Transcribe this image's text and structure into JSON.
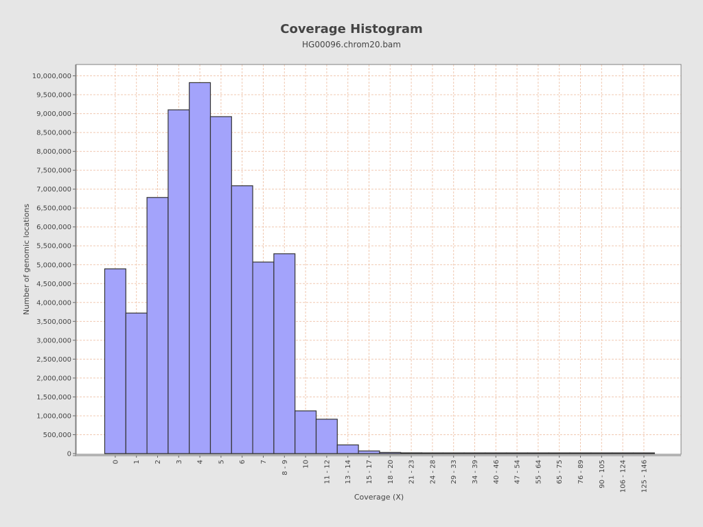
{
  "chart_data": {
    "type": "bar",
    "title": "Coverage Histogram",
    "subtitle": "HG00096.chrom20.bam",
    "xlabel": "Coverage (X)",
    "ylabel": "Number of genomic locations",
    "ylim": [
      0,
      10300000
    ],
    "yticks": [
      "0",
      "500,000",
      "1,000,000",
      "1,500,000",
      "2,000,000",
      "2,500,000",
      "3,000,000",
      "3,500,000",
      "4,000,000",
      "4,500,000",
      "5,000,000",
      "5,500,000",
      "6,000,000",
      "6,500,000",
      "7,000,000",
      "7,500,000",
      "8,000,000",
      "8,500,000",
      "9,000,000",
      "9,500,000",
      "10,000,000"
    ],
    "ytick_values": [
      0,
      500000,
      1000000,
      1500000,
      2000000,
      2500000,
      3000000,
      3500000,
      4000000,
      4500000,
      5000000,
      5500000,
      6000000,
      6500000,
      7000000,
      7500000,
      8000000,
      8500000,
      9000000,
      9500000,
      10000000
    ],
    "categories": [
      "0",
      "1",
      "2",
      "3",
      "4",
      "5",
      "6",
      "7",
      "8 - 9",
      "10",
      "11 - 12",
      "13 - 14",
      "15 - 17",
      "18 - 20",
      "21 - 23",
      "24 - 28",
      "29 - 33",
      "34 - 39",
      "40 - 46",
      "47 - 54",
      "55 - 64",
      "65 - 75",
      "76 - 89",
      "90 - 105",
      "106 - 124",
      "125 - 146"
    ],
    "values": [
      4890000,
      3720000,
      6780000,
      9100000,
      9820000,
      8920000,
      7090000,
      5070000,
      5290000,
      1130000,
      910000,
      230000,
      70000,
      30000,
      20000,
      15000,
      10000,
      3000,
      2000,
      1500,
      1000,
      800,
      600,
      400,
      300,
      200
    ],
    "grid": true,
    "colors": {
      "bar_fill": "#a3a3fb",
      "bar_stroke": "#333333",
      "grid": "#f0c8b0",
      "plot_bg": "#ffffff",
      "page_bg": "#e6e6e6"
    }
  }
}
